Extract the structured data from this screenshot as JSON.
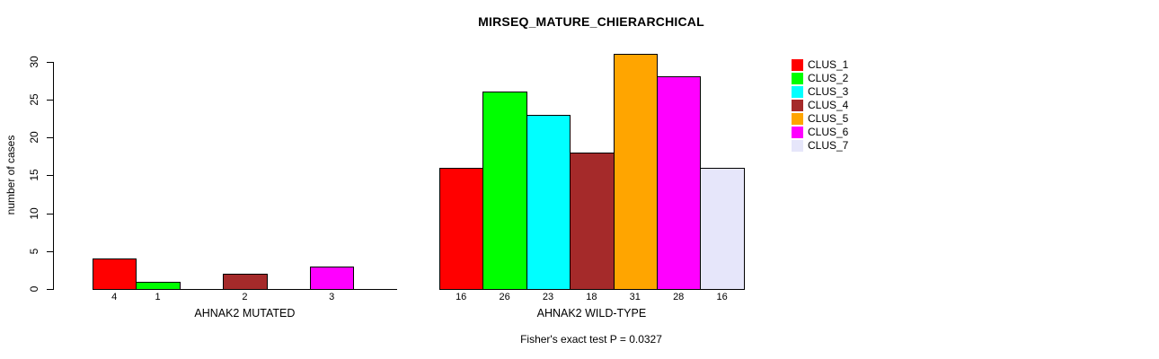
{
  "title": "MIRSEQ_MATURE_CHIERARCHICAL",
  "chart_data": {
    "type": "bar",
    "title": "MIRSEQ_MATURE_CHIERARCHICAL",
    "ylabel": "number of cases",
    "xlabel": "",
    "ylim": [
      0,
      31
    ],
    "yticks": [
      0,
      5,
      10,
      15,
      20,
      25,
      30
    ],
    "grid": false,
    "legend_position": "right",
    "bar_value_labels": true,
    "categories": [
      "AHNAK2 MUTATED",
      "AHNAK2 WILD-TYPE"
    ],
    "series": [
      {
        "name": "CLUS_1",
        "color": "#FF0000",
        "values": [
          4,
          16
        ]
      },
      {
        "name": "CLUS_2",
        "color": "#00FF00",
        "values": [
          1,
          26
        ]
      },
      {
        "name": "CLUS_3",
        "color": "#00FFFF",
        "values": [
          0,
          23
        ]
      },
      {
        "name": "CLUS_4",
        "color": "#A52A2A",
        "values": [
          2,
          18
        ]
      },
      {
        "name": "CLUS_5",
        "color": "#FFA500",
        "values": [
          0,
          31
        ]
      },
      {
        "name": "CLUS_6",
        "color": "#FF00FF",
        "values": [
          3,
          28
        ]
      },
      {
        "name": "CLUS_7",
        "color": "#E6E6FA",
        "values": [
          0,
          16
        ]
      }
    ],
    "annotation": "Fisher's exact test P = 0.0327"
  }
}
